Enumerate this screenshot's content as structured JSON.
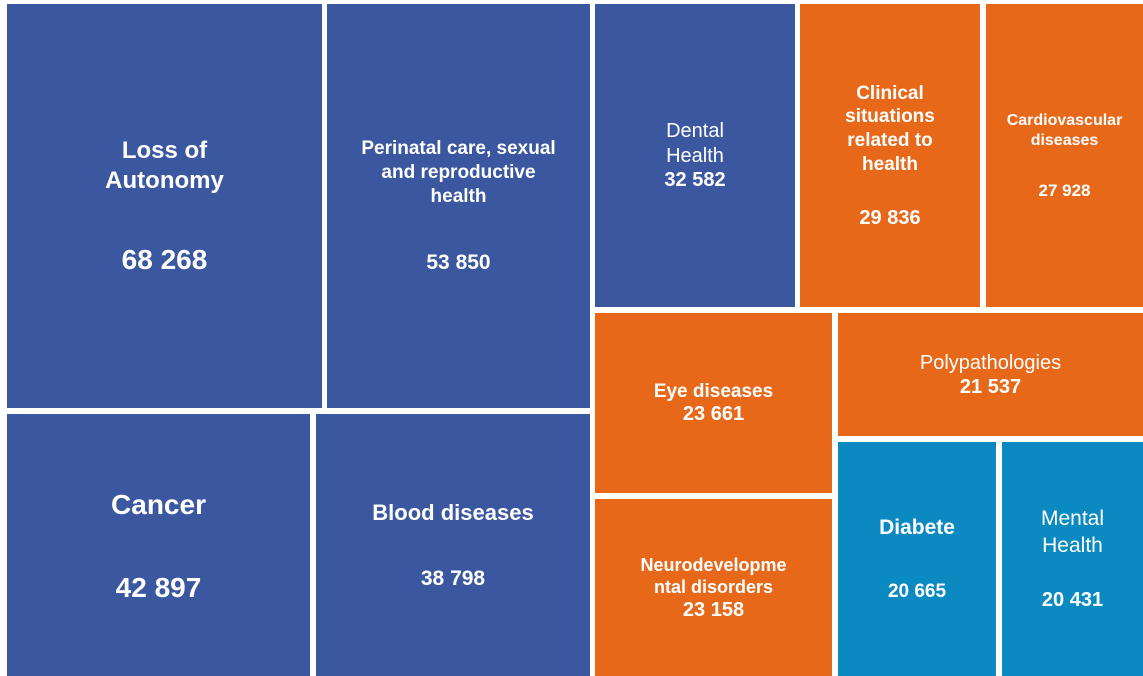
{
  "chart_data": {
    "type": "treemap",
    "categories": [
      "Loss of Autonomy",
      "Perinatal care, sexual and reproductive health",
      "Cancer",
      "Blood diseases",
      "Dental Health",
      "Clinical situations related to health",
      "Cardiovascular diseases",
      "Eye diseases",
      "Polypathologies",
      "Neurodevelopmental disorders",
      "Diabete",
      "Mental Health"
    ],
    "values": [
      68268,
      53850,
      42897,
      38798,
      32582,
      29836,
      27928,
      23661,
      21537,
      23158,
      20665,
      20431
    ],
    "value_labels": [
      "68 268",
      "53 850",
      "42 897",
      "38 798",
      "32 582",
      "29 836",
      "27 928",
      "23 661",
      "21 537",
      "23 158",
      "20 665",
      "20 431"
    ],
    "colors": [
      "#3a57a0",
      "#3a57a0",
      "#3a57a0",
      "#3a57a0",
      "#3a57a0",
      "#e8681a",
      "#e8681a",
      "#e8681a",
      "#e8681a",
      "#e8681a",
      "#0b8ac2",
      "#0b8ac2"
    ]
  }
}
